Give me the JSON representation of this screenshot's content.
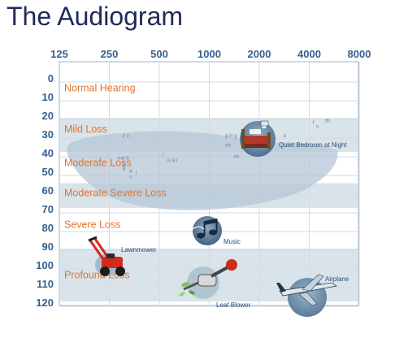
{
  "title": "The Audiogram",
  "chart_data": {
    "type": "table",
    "x_ticks": [
      "125",
      "250",
      "500",
      "1000",
      "2000",
      "4000",
      "8000"
    ],
    "y_ticks": [
      "0",
      "10",
      "20",
      "30",
      "40",
      "50",
      "60",
      "70",
      "80",
      "90",
      "100",
      "110",
      "120"
    ],
    "ylim": [
      0,
      120
    ],
    "grid": true,
    "bands": [
      {
        "label": "Normal Hearing",
        "from_db": 0,
        "to_db": 20,
        "shaded": false
      },
      {
        "label": "Mild Loss",
        "from_db": 20,
        "to_db": 40,
        "shaded": true
      },
      {
        "label": "Moderate Loss",
        "from_db": 40,
        "to_db": 55,
        "shaded": false
      },
      {
        "label": "Moderate Severe Loss",
        "from_db": 55,
        "to_db": 70,
        "shaded": true
      },
      {
        "label": "Severe Loss",
        "from_db": 70,
        "to_db": 90,
        "shaded": false
      },
      {
        "label": "Profound Loss",
        "from_db": 90,
        "to_db": 120,
        "shaded": true
      }
    ],
    "sounds": [
      {
        "label": "Quiet Bedroom at Night",
        "freq": 2000,
        "db": 30,
        "icon": "bedroom-icon"
      },
      {
        "label": "Music",
        "freq": 1000,
        "db": 83,
        "icon": "music-icon"
      },
      {
        "label": "Lawnmower",
        "freq": 250,
        "db": 95,
        "icon": "lawnmower-icon"
      },
      {
        "label": "Leaf Blower",
        "freq": 1000,
        "db": 110,
        "icon": "leaf-blower-icon"
      },
      {
        "label": "Airplane",
        "freq": 4000,
        "db": 115,
        "icon": "airplane-icon"
      }
    ],
    "phonemes": [
      {
        "text": "z v",
        "freq": 300,
        "db": 30
      },
      {
        "text": "j",
        "freq": 220,
        "db": 42
      },
      {
        "text": "md b",
        "freq": 280,
        "db": 42
      },
      {
        "text": "n",
        "freq": 300,
        "db": 45
      },
      {
        "text": "g",
        "freq": 300,
        "db": 47
      },
      {
        "text": "e",
        "freq": 330,
        "db": 49
      },
      {
        "text": "l",
        "freq": 360,
        "db": 50
      },
      {
        "text": "u",
        "freq": 330,
        "db": 52
      },
      {
        "text": "i",
        "freq": 520,
        "db": 40
      },
      {
        "text": "o a r",
        "freq": 560,
        "db": 43
      },
      {
        "text": "p h g",
        "freq": 1250,
        "db": 30
      },
      {
        "text": "ch",
        "freq": 1250,
        "db": 35
      },
      {
        "text": "sh",
        "freq": 1400,
        "db": 41
      },
      {
        "text": "k",
        "freq": 2800,
        "db": 30
      },
      {
        "text": "f",
        "freq": 4200,
        "db": 23
      },
      {
        "text": "s",
        "freq": 4400,
        "db": 25
      },
      {
        "text": "th",
        "freq": 5000,
        "db": 22
      }
    ],
    "colors": {
      "band_shade": "#d9e3ea",
      "grid": "#cfdbe5",
      "axis_text": "#36608e",
      "category_text": "#e6732a",
      "speech_banana": "#b5c7d5"
    }
  }
}
